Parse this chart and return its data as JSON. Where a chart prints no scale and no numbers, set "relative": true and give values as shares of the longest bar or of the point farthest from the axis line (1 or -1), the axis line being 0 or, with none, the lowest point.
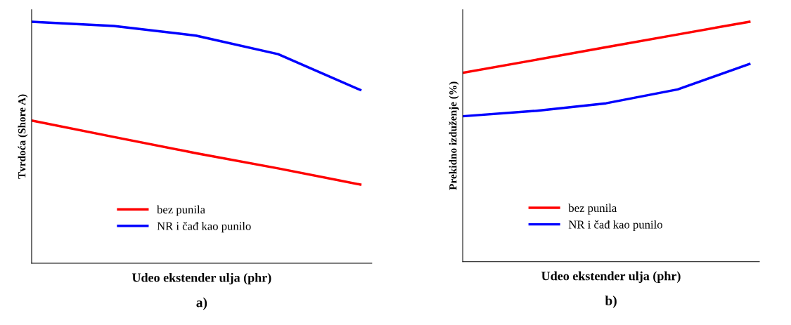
{
  "chart_data": [
    {
      "type": "line",
      "relative": true,
      "xlabel": "Udeo ekstender ulja (phr)",
      "ylabel": "Tvrdoća (Shore A)",
      "categories": [
        null,
        null,
        null,
        null,
        null
      ],
      "tick_labels": false,
      "grid": false,
      "legend": "bottom",
      "marker": "none",
      "line_style": "solid",
      "annotations": [
        "a)"
      ],
      "series": [
        {
          "name": "bez punila",
          "color": "#ff0000",
          "values": [
            0.591,
            0.523,
            0.456,
            0.393,
            0.326
          ]
        },
        {
          "name": "NR i čađ kao punilo",
          "color": "#0000ff",
          "values": [
            1.0,
            0.983,
            0.943,
            0.866,
            0.718
          ]
        }
      ]
    },
    {
      "type": "line",
      "relative": true,
      "xlabel": "Udeo ekstender ulja (phr)",
      "ylabel": "Prekidno izduženje (%)",
      "categories": [
        null,
        null,
        null,
        null,
        null
      ],
      "tick_labels": false,
      "grid": false,
      "legend": "bottom",
      "marker": "none",
      "line_style": "solid",
      "annotations": [
        "b)"
      ],
      "series": [
        {
          "name": "bez punila",
          "color": "#ff0000",
          "values": [
            0.787,
            0.84,
            0.894,
            0.947,
            1.0
          ]
        },
        {
          "name": "NR i čađ kao punilo",
          "color": "#0000ff",
          "values": [
            0.606,
            0.628,
            0.66,
            0.718,
            0.824
          ]
        }
      ]
    }
  ]
}
